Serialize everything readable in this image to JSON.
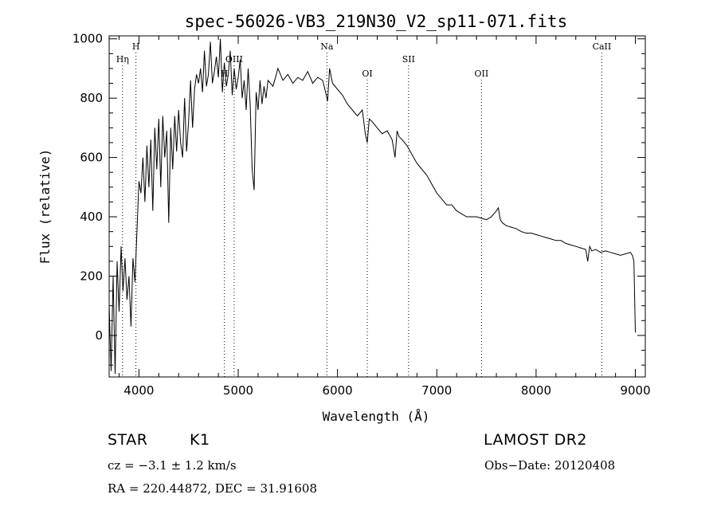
{
  "chart_data": {
    "type": "line",
    "title": "spec-56026-VB3_219N30_V2_sp11-071.fits",
    "xlabel": "Wavelength (Å)",
    "ylabel": "Flux (relative)",
    "xlim": [
      3700,
      9100
    ],
    "ylim": [
      -140,
      1010
    ],
    "x_ticks": [
      4000,
      5000,
      6000,
      7000,
      8000,
      9000
    ],
    "y_ticks": [
      0,
      200,
      400,
      600,
      800,
      1000
    ],
    "series": [
      {
        "x": [
          3700,
          3720,
          3740,
          3760,
          3780,
          3800,
          3820,
          3840,
          3860,
          3880,
          3900,
          3920,
          3940,
          3960,
          3980,
          4000,
          4020,
          4040,
          4060,
          4080,
          4100,
          4120,
          4140,
          4160,
          4180,
          4200,
          4220,
          4240,
          4260,
          4280,
          4300,
          4320,
          4340,
          4360,
          4380,
          4400,
          4420,
          4440,
          4460,
          4480,
          4500,
          4520,
          4540,
          4560,
          4580,
          4600,
          4620,
          4640,
          4660,
          4680,
          4700,
          4720,
          4740,
          4760,
          4780,
          4800,
          4820,
          4840,
          4860,
          4880,
          4900,
          4920,
          4940,
          4960,
          4980,
          5000,
          5020,
          5040,
          5060,
          5080,
          5100,
          5120,
          5140,
          5160,
          5180,
          5200,
          5220,
          5240,
          5260,
          5280,
          5300,
          5350,
          5400,
          5450,
          5500,
          5550,
          5600,
          5650,
          5700,
          5750,
          5800,
          5850,
          5880,
          5900,
          5920,
          5950,
          6000,
          6050,
          6100,
          6150,
          6200,
          6250,
          6280,
          6300,
          6320,
          6350,
          6400,
          6450,
          6500,
          6550,
          6580,
          6600,
          6620,
          6650,
          6700,
          6750,
          6800,
          6850,
          6900,
          6950,
          7000,
          7050,
          7100,
          7150,
          7200,
          7250,
          7300,
          7350,
          7400,
          7450,
          7500,
          7550,
          7600,
          7620,
          7640,
          7660,
          7700,
          7750,
          7800,
          7850,
          7900,
          7950,
          8000,
          8050,
          8100,
          8150,
          8200,
          8250,
          8300,
          8350,
          8400,
          8450,
          8500,
          8520,
          8540,
          8560,
          8600,
          8650,
          8700,
          8750,
          8800,
          8850,
          8900,
          8950,
          8970,
          8985,
          9000
        ],
        "y": [
          100,
          -120,
          200,
          -130,
          250,
          80,
          300,
          150,
          260,
          120,
          200,
          30,
          260,
          180,
          350,
          520,
          480,
          600,
          450,
          640,
          500,
          660,
          420,
          700,
          560,
          730,
          500,
          740,
          600,
          690,
          380,
          700,
          560,
          740,
          620,
          760,
          650,
          600,
          800,
          620,
          720,
          860,
          700,
          830,
          880,
          850,
          900,
          820,
          960,
          840,
          880,
          990,
          850,
          890,
          940,
          870,
          1000,
          820,
          920,
          840,
          880,
          960,
          810,
          900,
          830,
          870,
          930,
          800,
          860,
          760,
          900,
          780,
          560,
          490,
          820,
          760,
          860,
          780,
          840,
          800,
          860,
          840,
          900,
          860,
          880,
          850,
          870,
          860,
          890,
          850,
          870,
          860,
          820,
          790,
          900,
          850,
          830,
          810,
          780,
          760,
          740,
          760,
          680,
          650,
          730,
          720,
          700,
          680,
          690,
          660,
          600,
          690,
          670,
          660,
          640,
          610,
          580,
          560,
          540,
          510,
          480,
          460,
          440,
          440,
          420,
          410,
          400,
          400,
          400,
          395,
          390,
          400,
          420,
          430,
          390,
          380,
          370,
          365,
          360,
          350,
          345,
          345,
          340,
          335,
          330,
          325,
          320,
          320,
          310,
          305,
          300,
          295,
          290,
          250,
          300,
          285,
          290,
          280,
          285,
          280,
          275,
          270,
          275,
          280,
          270,
          250,
          10
        ]
      }
    ],
    "line_markers": [
      {
        "label": "Hη",
        "x": 3835,
        "row": 2
      },
      {
        "label": "H",
        "x": 3970,
        "row": 1
      },
      {
        "label": "H",
        "x": 4861,
        "row": 3
      },
      {
        "label": "OIII",
        "x": 4959,
        "row": 2
      },
      {
        "label": "Na",
        "x": 5893,
        "row": 1
      },
      {
        "label": "OI",
        "x": 6300,
        "row": 3
      },
      {
        "label": "SII",
        "x": 6716,
        "row": 2
      },
      {
        "label": "OII",
        "x": 7450,
        "row": 3
      },
      {
        "label": "CaII",
        "x": 8662,
        "row": 1
      }
    ]
  },
  "info": {
    "object_class": "STAR",
    "subclass": "K1",
    "survey": "LAMOST DR2",
    "cz": "cz = −3.1 ± 1.2 km/s",
    "obs_date": "Obs−Date: 20120408",
    "coords": "RA = 220.44872, DEC =  31.91608"
  }
}
